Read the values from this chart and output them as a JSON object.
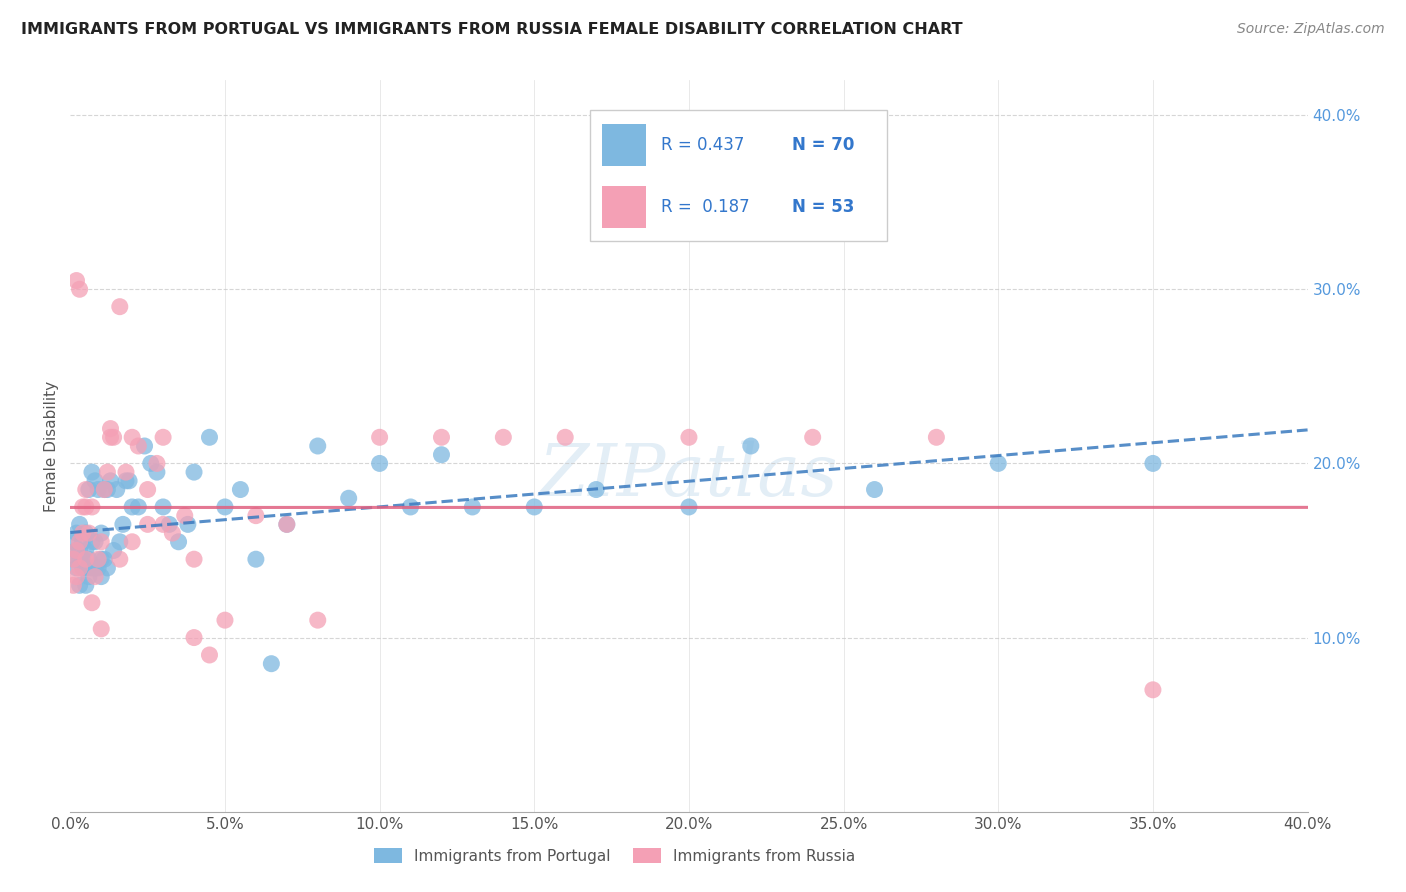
{
  "title": "IMMIGRANTS FROM PORTUGAL VS IMMIGRANTS FROM RUSSIA FEMALE DISABILITY CORRELATION CHART",
  "source": "Source: ZipAtlas.com",
  "ylabel": "Female Disability",
  "xlim": [
    0.0,
    0.4
  ],
  "ylim": [
    0.0,
    0.42
  ],
  "x_ticks": [
    0.0,
    0.05,
    0.1,
    0.15,
    0.2,
    0.25,
    0.3,
    0.35,
    0.4
  ],
  "y_ticks_right": [
    0.1,
    0.2,
    0.3,
    0.4
  ],
  "color_portugal": "#7eb8e0",
  "color_russia": "#f4a0b5",
  "trendline_portugal_color": "#3a7abf",
  "trendline_russia_color": "#e06080",
  "R1": 0.437,
  "N1": 70,
  "R2": 0.187,
  "N2": 53,
  "portugal_x": [
    0.001,
    0.001,
    0.002,
    0.002,
    0.002,
    0.003,
    0.003,
    0.003,
    0.003,
    0.004,
    0.004,
    0.004,
    0.005,
    0.005,
    0.005,
    0.005,
    0.006,
    0.006,
    0.006,
    0.007,
    0.007,
    0.007,
    0.008,
    0.008,
    0.008,
    0.009,
    0.009,
    0.01,
    0.01,
    0.01,
    0.011,
    0.011,
    0.012,
    0.012,
    0.013,
    0.014,
    0.015,
    0.016,
    0.017,
    0.018,
    0.019,
    0.02,
    0.022,
    0.024,
    0.026,
    0.028,
    0.03,
    0.032,
    0.035,
    0.038,
    0.04,
    0.045,
    0.05,
    0.055,
    0.06,
    0.065,
    0.07,
    0.08,
    0.09,
    0.1,
    0.11,
    0.12,
    0.13,
    0.15,
    0.17,
    0.2,
    0.22,
    0.26,
    0.3,
    0.35
  ],
  "portugal_y": [
    0.145,
    0.155,
    0.14,
    0.15,
    0.16,
    0.13,
    0.145,
    0.15,
    0.165,
    0.14,
    0.145,
    0.155,
    0.13,
    0.14,
    0.15,
    0.16,
    0.135,
    0.145,
    0.185,
    0.14,
    0.155,
    0.195,
    0.14,
    0.155,
    0.19,
    0.14,
    0.185,
    0.135,
    0.145,
    0.16,
    0.145,
    0.185,
    0.14,
    0.185,
    0.19,
    0.15,
    0.185,
    0.155,
    0.165,
    0.19,
    0.19,
    0.175,
    0.175,
    0.21,
    0.2,
    0.195,
    0.175,
    0.165,
    0.155,
    0.165,
    0.195,
    0.215,
    0.175,
    0.185,
    0.145,
    0.085,
    0.165,
    0.21,
    0.18,
    0.2,
    0.175,
    0.205,
    0.175,
    0.175,
    0.185,
    0.175,
    0.21,
    0.185,
    0.2,
    0.2
  ],
  "russia_x": [
    0.001,
    0.001,
    0.002,
    0.002,
    0.003,
    0.003,
    0.004,
    0.004,
    0.005,
    0.005,
    0.006,
    0.007,
    0.008,
    0.009,
    0.01,
    0.011,
    0.012,
    0.013,
    0.014,
    0.016,
    0.018,
    0.02,
    0.022,
    0.025,
    0.028,
    0.03,
    0.033,
    0.037,
    0.04,
    0.045,
    0.05,
    0.06,
    0.07,
    0.08,
    0.1,
    0.12,
    0.14,
    0.16,
    0.2,
    0.24,
    0.28,
    0.35,
    0.002,
    0.003,
    0.005,
    0.007,
    0.01,
    0.013,
    0.016,
    0.02,
    0.025,
    0.03,
    0.04
  ],
  "russia_y": [
    0.13,
    0.145,
    0.135,
    0.15,
    0.14,
    0.155,
    0.16,
    0.175,
    0.145,
    0.185,
    0.16,
    0.12,
    0.135,
    0.145,
    0.105,
    0.185,
    0.195,
    0.215,
    0.215,
    0.29,
    0.195,
    0.215,
    0.21,
    0.185,
    0.2,
    0.215,
    0.16,
    0.17,
    0.145,
    0.09,
    0.11,
    0.17,
    0.165,
    0.11,
    0.215,
    0.215,
    0.215,
    0.215,
    0.215,
    0.215,
    0.215,
    0.07,
    0.305,
    0.3,
    0.175,
    0.175,
    0.155,
    0.22,
    0.145,
    0.155,
    0.165,
    0.165,
    0.1
  ],
  "watermark": "ZIPatlas",
  "legend_label_portugal": "Immigrants from Portugal",
  "legend_label_russia": "Immigrants from Russia"
}
